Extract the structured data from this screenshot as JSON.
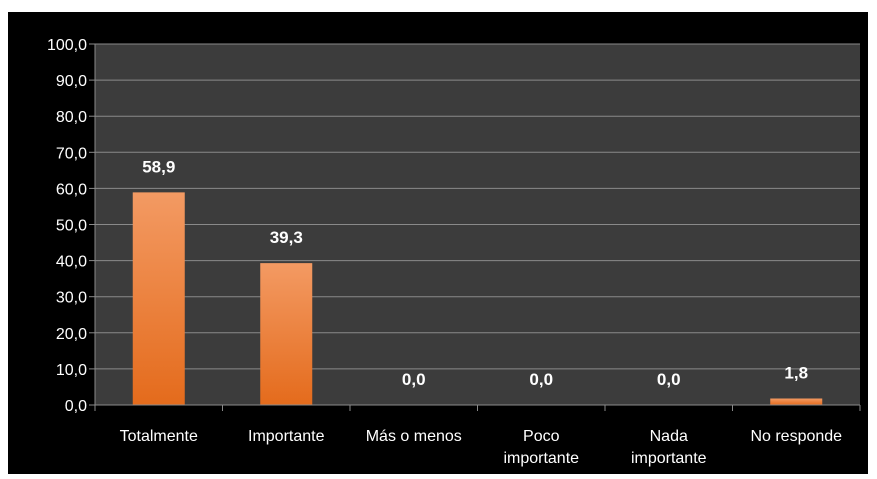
{
  "chart_data": {
    "type": "bar",
    "categories": [
      "Totalmente",
      "Importante",
      "Más o menos",
      "Poco\nimportante",
      "Nada\nimportante",
      "No responde"
    ],
    "values": [
      58.9,
      39.3,
      0.0,
      0.0,
      0.0,
      1.8
    ],
    "data_labels": [
      "58,9",
      "39,3",
      "0,0",
      "0,0",
      "0,0",
      "1,8"
    ],
    "y_ticks": [
      "0,0",
      "10,0",
      "20,0",
      "30,0",
      "40,0",
      "50,0",
      "60,0",
      "70,0",
      "80,0",
      "90,0",
      "100,0"
    ],
    "ylim": [
      0,
      100
    ],
    "grid": true,
    "legend": "none",
    "colors": {
      "background": "#000000",
      "plot_background": "#3c3c3c",
      "grid": "#8a8a8a",
      "bar_top": "#f39a63",
      "bar_bottom": "#e46b1c",
      "text": "#ffffff"
    }
  }
}
